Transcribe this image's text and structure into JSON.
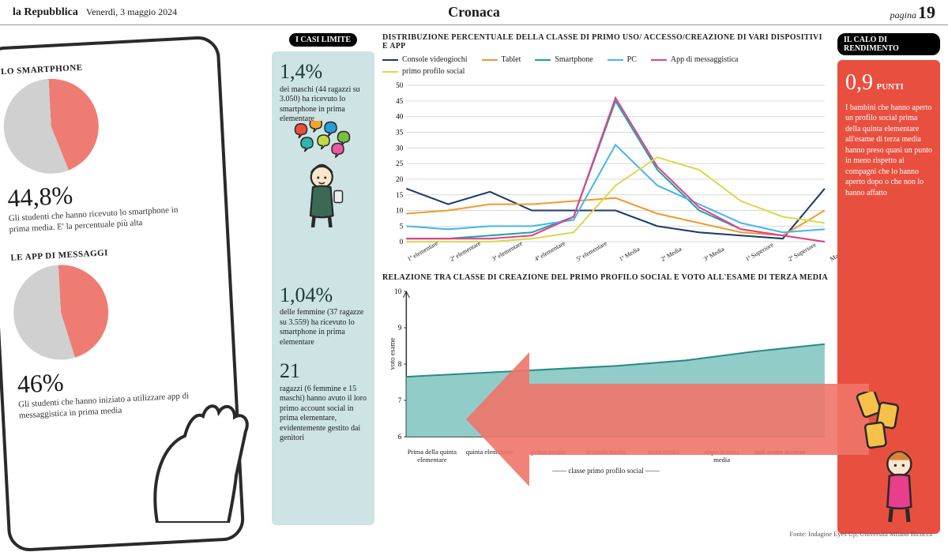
{
  "masthead": {
    "brand": "la Repubblica",
    "date": "Venerdì, 3 maggio 2024",
    "section": "Cronaca",
    "page_word": "pagina",
    "page_num": "19"
  },
  "left": {
    "pie1": {
      "label": "LO SMARTPHONE",
      "pct_label": "44,8%",
      "desc": "Gli studenti che hanno ricevuto lo smartphone in prima media. E' la percentuale più alta",
      "slice_pct": 44.8,
      "colors": {
        "slice": "#ef7c72",
        "rest": "#d0d0d0",
        "bg": "#ffffff"
      }
    },
    "pie2": {
      "label": "LE APP DI MESSAGGI",
      "pct_label": "46%",
      "desc": "Gli studenti che hanno iniziato a utilizzare app di messaggistica in prima media",
      "slice_pct": 46,
      "colors": {
        "slice": "#ef7c72",
        "rest": "#d0d0d0",
        "bg": "#ffffff"
      }
    }
  },
  "strip": {
    "header": "I CASI LIMITE",
    "bg": "#cde3e4",
    "stats": [
      {
        "num": "1,4%",
        "text": "dei maschi (44 ragazzi su 3.050) ha ricevuto lo smartphone in prima elementare"
      },
      {
        "num": "1,04%",
        "text": "delle femmine (37 ragazze su 3.559) ha ricevuto lo smartphone in prima elementare"
      },
      {
        "num": "21",
        "text": "ragazzi (6 femmine e 15 maschi) hanno avuto il loro primo account social in prima elementare, evidentemente gestito dai genitori"
      }
    ]
  },
  "line_chart": {
    "title": "DISTRIBUZIONE PERCENTUALE DELLA CLASSE DI PRIMO USO/ ACCESSO/CREAZIONE DI VARI DISPOSITIVI E APP",
    "ylim": [
      0,
      50
    ],
    "ytick_step": 5,
    "grid_color": "#d9d9d9",
    "categories": [
      "1ª elementare",
      "2ª elementare",
      "3ª elementare",
      "4ª elementare",
      "5ª elementare",
      "1ª Media",
      "2ª Media",
      "3ª Media",
      "1ª Superiore",
      "2ª Superiore",
      "Mai avuto accesso"
    ],
    "series": [
      {
        "name": "Console videogiochi",
        "color": "#1a3a6e",
        "values": [
          17,
          12,
          16,
          10,
          10,
          10,
          5,
          3,
          2,
          1,
          17
        ]
      },
      {
        "name": "Tablet",
        "color": "#f39a2b",
        "values": [
          9,
          10,
          12,
          12,
          13,
          14,
          9,
          6,
          3,
          2,
          10
        ]
      },
      {
        "name": "Smartphone",
        "color": "#1aa5a0",
        "values": [
          1,
          1,
          2,
          3,
          8,
          45,
          23,
          10,
          4,
          2,
          0
        ]
      },
      {
        "name": "PC",
        "color": "#44b7ef",
        "values": [
          5,
          4,
          5,
          5,
          7,
          31,
          18,
          12,
          6,
          3,
          4
        ]
      },
      {
        "name": "App di messaggistica",
        "color": "#e83e8c",
        "values": [
          1,
          1,
          1,
          2,
          8,
          46,
          24,
          11,
          4,
          2,
          0
        ]
      },
      {
        "name": "primo profilo social",
        "color": "#d9d94a",
        "values": [
          0,
          0,
          0,
          1,
          3,
          18,
          27,
          23,
          13,
          8,
          6
        ]
      }
    ]
  },
  "area_chart": {
    "title": "RELAZIONE TRA CLASSE DI CREAZIONE DEL PRIMO PROFILO SOCIAL E VOTO ALL'ESAME DI TERZA MEDIA",
    "ylabel": "voto esame",
    "xlabel": "classe primo profilo social",
    "ylim": [
      6,
      10
    ],
    "ytick_step": 1,
    "categories": [
      "Prima della quinta elementare",
      "quinta elementare",
      "prima media",
      "seconda media",
      "terza media",
      "dopo la terza media",
      "mai avuto accesso"
    ],
    "values": [
      7.65,
      7.75,
      7.85,
      7.95,
      8.1,
      8.35,
      8.55
    ],
    "fill_color": "#7fc3bf",
    "line_color": "#2a8a85",
    "grid_color": "#d9d9d9"
  },
  "right": {
    "header": "IL CALO DI RENDIMENTO",
    "bg": "#e94f3f",
    "num": "0,9",
    "unit": "PUNTI",
    "text": "I bambini che hanno aperto un profilo social prima della quinta elementare all'esame di terza media hanno preso quasi un punto in meno rispetto ai compagni che lo hanno aperto dopo o che non lo hanno affatto"
  },
  "source": {
    "label": "Fonte: Indagine Eyes Up, Università Milano Bicocca"
  },
  "bubble_colors": [
    "#e94f3f",
    "#f3a52b",
    "#2a9dd6",
    "#7bbf3f",
    "#2fb5ad",
    "#c3d94a",
    "#e85aa0"
  ]
}
